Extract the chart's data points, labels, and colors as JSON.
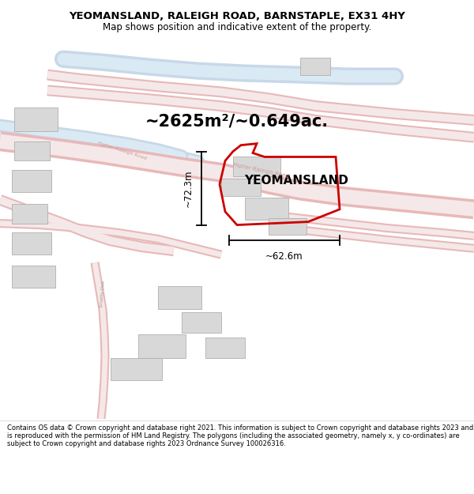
{
  "title_line1": "YEOMANSLAND, RALEIGH ROAD, BARNSTAPLE, EX31 4HY",
  "title_line2": "Map shows position and indicative extent of the property.",
  "area_text": "~2625m²/~0.649ac.",
  "property_label": "YEOMANSLAND",
  "dim_vertical": "~72.3m",
  "dim_horizontal": "~62.6m",
  "footer_text": "Contains OS data © Crown copyright and database right 2021. This information is subject to Crown copyright and database rights 2023 and is reproduced with the permission of HM Land Registry. The polygons (including the associated geometry, namely x, y co-ordinates) are subject to Crown copyright and database rights 2023 Ordnance Survey 100026316.",
  "map_bg": "#ffffff",
  "title_bg": "#ffffff",
  "footer_bg": "#ffffff",
  "road_outline": "#e8b8b8",
  "road_fill": "#f5e8e8",
  "water_color": "#c8d8e8",
  "building_color": "#d8d8d8",
  "building_edge": "#b0b0b0",
  "property_stroke": "#cc0000",
  "dim_color": "#000000",
  "road_label_color": "#cc9999",
  "road_label2_color": "#aaaaaa",
  "street_label_color": "#999999"
}
